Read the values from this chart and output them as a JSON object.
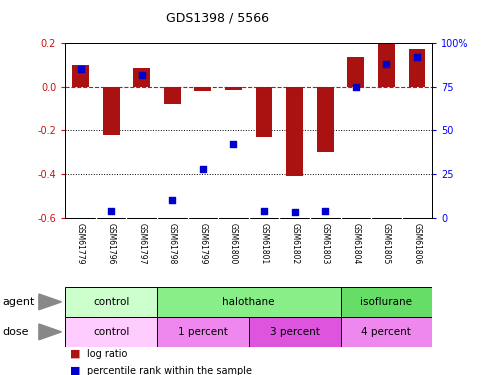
{
  "title": "GDS1398 / 5566",
  "samples": [
    "GSM61779",
    "GSM61796",
    "GSM61797",
    "GSM61798",
    "GSM61799",
    "GSM61800",
    "GSM61801",
    "GSM61802",
    "GSM61803",
    "GSM61804",
    "GSM61805",
    "GSM61806"
  ],
  "log_ratio": [
    0.1,
    -0.22,
    0.085,
    -0.08,
    -0.02,
    -0.015,
    -0.23,
    -0.41,
    -0.3,
    0.135,
    0.2,
    0.175
  ],
  "percentile_rank": [
    85,
    4,
    82,
    10,
    28,
    42,
    4,
    3,
    4,
    75,
    88,
    92
  ],
  "ylim": [
    -0.6,
    0.2
  ],
  "yticks_left": [
    -0.6,
    -0.4,
    -0.2,
    0.0,
    0.2
  ],
  "yticks_right": [
    0,
    25,
    50,
    75,
    100
  ],
  "agent_groups": [
    {
      "label": "control",
      "start": 0,
      "end": 3,
      "color": "#ccffcc"
    },
    {
      "label": "halothane",
      "start": 3,
      "end": 9,
      "color": "#88ee88"
    },
    {
      "label": "isoflurane",
      "start": 9,
      "end": 12,
      "color": "#66dd66"
    }
  ],
  "dose_groups": [
    {
      "label": "control",
      "start": 0,
      "end": 3,
      "color": "#ffccff"
    },
    {
      "label": "1 percent",
      "start": 3,
      "end": 6,
      "color": "#ee88ee"
    },
    {
      "label": "3 percent",
      "start": 6,
      "end": 9,
      "color": "#dd55dd"
    },
    {
      "label": "4 percent",
      "start": 9,
      "end": 12,
      "color": "#ee88ee"
    }
  ],
  "bar_color": "#aa1111",
  "dot_color": "#0000cc",
  "dashed_line_color": "#cc1111",
  "background_color": "#ffffff",
  "plot_bg_color": "#ffffff",
  "sample_bg_color": "#c8c8c8",
  "bar_width": 0.55
}
